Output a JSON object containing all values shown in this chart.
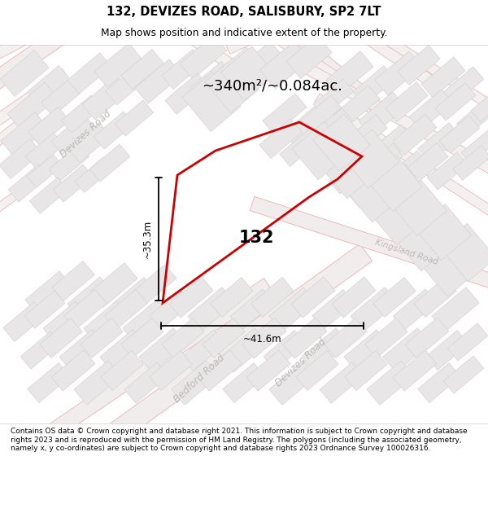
{
  "title": "132, DEVIZES ROAD, SALISBURY, SP2 7LT",
  "subtitle": "Map shows position and indicative extent of the property.",
  "area_label": "~340m²/~0.084ac.",
  "property_label": "132",
  "dim_h": "~41.6m",
  "dim_v": "~35.3m",
  "footer": "Contains OS data © Crown copyright and database right 2021. This information is subject to Crown copyright and database rights 2023 and is reproduced with the permission of HM Land Registry. The polygons (including the associated geometry, namely x, y co-ordinates) are subject to Crown copyright and database rights 2023 Ordnance Survey 100026316.",
  "map_bg": "#f7f5f5",
  "block_fc": "#e8e6e6",
  "block_ec": "#d8d4d4",
  "road_fc": "#f0eaea",
  "road_ec": "#e8b8b8",
  "road_line": "#f0c0c0",
  "property_color": "#cc0000",
  "road_label_color": "#c0b8b8",
  "kingsland_color": "#b8b0b0"
}
